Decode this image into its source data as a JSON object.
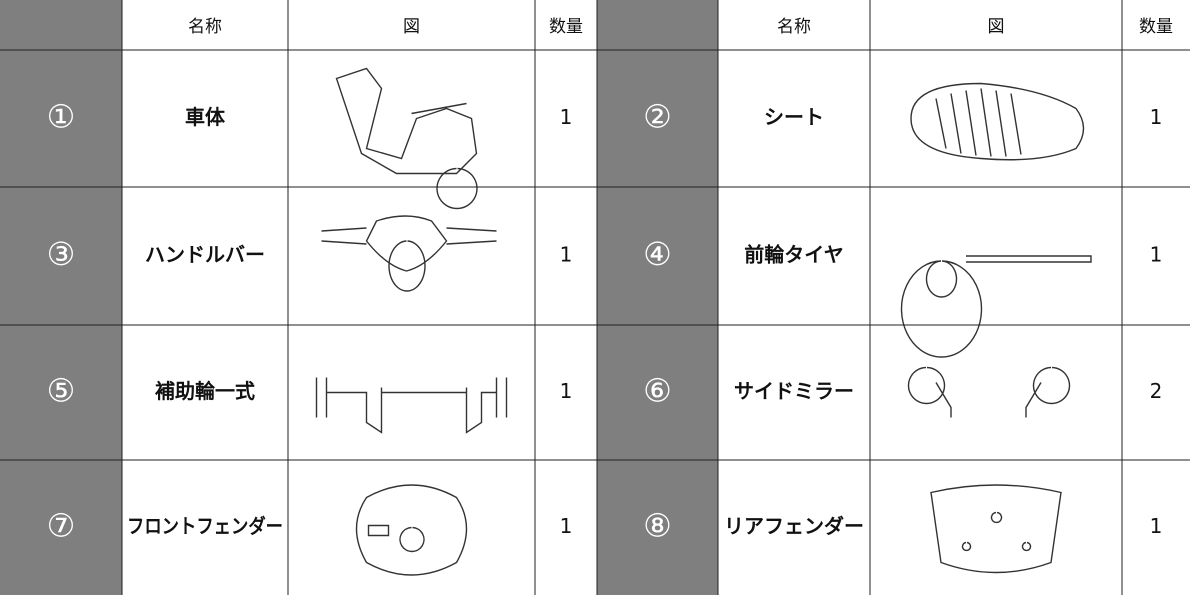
{
  "table": {
    "header": [
      "名称",
      "図",
      "数量",
      "名称",
      "図",
      "数量"
    ],
    "items": [
      {
        "number": "①",
        "name": "車体",
        "quantity": 1
      },
      {
        "number": "②",
        "name": "シート",
        "quantity": 1
      },
      {
        "number": "③",
        "name": "ハンドルバー",
        "quantity": 1
      },
      {
        "number": "④",
        "name": "前輪タイヤ",
        "quantity": 1
      },
      {
        "number": "⑤",
        "name": "補助輪一式",
        "quantity": 1
      },
      {
        "number": "⑥",
        "name": "サイドミラー",
        "quantity": 2
      },
      {
        "number": "⑦",
        "name": "フロントフェンダー",
        "quantity": 1
      },
      {
        "number": "⑧",
        "name": "リアフェンダー",
        "quantity": 1
      }
    ]
  }
}
